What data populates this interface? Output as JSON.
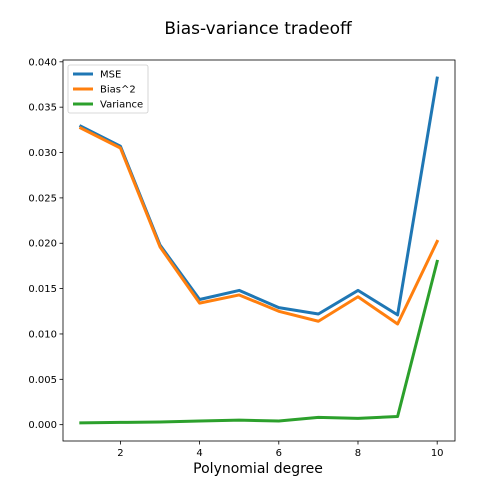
{
  "chart_data": {
    "type": "line",
    "title": "Bias-variance tradeoff",
    "xlabel": "Polynomial degree",
    "ylabel": "",
    "x": [
      1,
      2,
      3,
      4,
      5,
      6,
      7,
      8,
      9,
      10
    ],
    "xlim": [
      0.55,
      10.45
    ],
    "ylim": [
      -0.0018,
      0.0402
    ],
    "xticks": [
      2,
      4,
      6,
      8,
      10
    ],
    "xtick_labels": [
      "2",
      "4",
      "6",
      "8",
      "10"
    ],
    "yticks": [
      0.0,
      0.005,
      0.01,
      0.015,
      0.02,
      0.025,
      0.03,
      0.035,
      0.04
    ],
    "ytick_labels": [
      "0.000",
      "0.005",
      "0.010",
      "0.015",
      "0.020",
      "0.025",
      "0.030",
      "0.035",
      "0.040"
    ],
    "grid": false,
    "legend_position": "top-left",
    "series": [
      {
        "name": "MSE",
        "color": "#1f77b4",
        "values": [
          0.0329,
          0.0307,
          0.0198,
          0.0138,
          0.0148,
          0.0129,
          0.0122,
          0.0148,
          0.0121,
          0.0382
        ]
      },
      {
        "name": "Bias^2",
        "color": "#ff7f0e",
        "values": [
          0.0327,
          0.0305,
          0.0196,
          0.0134,
          0.0143,
          0.0125,
          0.0114,
          0.0141,
          0.0111,
          0.0202
        ]
      },
      {
        "name": "Variance",
        "color": "#2ca02c",
        "values": [
          0.0002,
          0.00025,
          0.0003,
          0.0004,
          0.0005,
          0.0004,
          0.0008,
          0.0007,
          0.0009,
          0.018
        ]
      }
    ]
  }
}
